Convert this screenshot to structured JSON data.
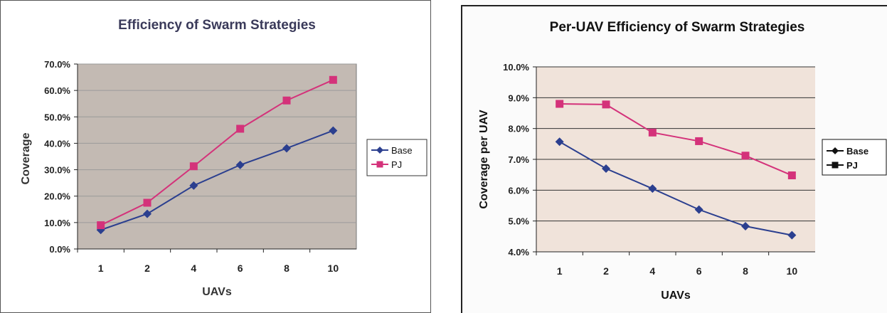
{
  "chart_data": [
    {
      "type": "line",
      "title": "Efficiency of Swarm Strategies",
      "xlabel": "UAVs",
      "ylabel": "Coverage",
      "categories": [
        "1",
        "2",
        "4",
        "6",
        "8",
        "10"
      ],
      "y_ticks": [
        "0.0%",
        "10.0%",
        "20.0%",
        "30.0%",
        "40.0%",
        "50.0%",
        "60.0%",
        "70.0%"
      ],
      "ylim": [
        0,
        0.7
      ],
      "grid": true,
      "legend_position": "right",
      "plot_background": "#c0b8b0",
      "series": [
        {
          "name": "Base",
          "color": "#2b3f8f",
          "marker": "diamond",
          "values": [
            0.072,
            0.133,
            0.24,
            0.318,
            0.381,
            0.448
          ]
        },
        {
          "name": "PJ",
          "color": "#d4327a",
          "marker": "square",
          "values": [
            0.09,
            0.175,
            0.313,
            0.455,
            0.562,
            0.64
          ]
        }
      ]
    },
    {
      "type": "line",
      "title": "Per-UAV Efficiency of Swarm Strategies",
      "xlabel": "UAVs",
      "ylabel": "Coverage per UAV",
      "categories": [
        "1",
        "2",
        "4",
        "6",
        "8",
        "10"
      ],
      "y_ticks": [
        "4.0%",
        "5.0%",
        "6.0%",
        "7.0%",
        "8.0%",
        "9.0%",
        "10.0%"
      ],
      "ylim": [
        0.04,
        0.1
      ],
      "grid": true,
      "legend_position": "right",
      "plot_background": "#f0e4dc",
      "series": [
        {
          "name": "Base",
          "color": "#2b3f8f",
          "marker": "diamond",
          "values": [
            0.0757,
            0.067,
            0.0605,
            0.0537,
            0.0483,
            0.0454
          ]
        },
        {
          "name": "PJ",
          "color": "#d4327a",
          "marker": "square",
          "values": [
            0.088,
            0.0878,
            0.0787,
            0.0759,
            0.0712,
            0.0648
          ]
        }
      ]
    }
  ]
}
